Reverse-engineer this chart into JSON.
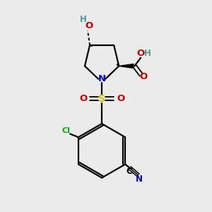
{
  "bg_color": "#ebebeb",
  "bond_color": "#000000",
  "N_color": "#0000cc",
  "O_color": "#cc0000",
  "S_color": "#cccc00",
  "Cl_color": "#00aa00",
  "C_color": "#000000",
  "N2_color": "#0000cc",
  "H_color": "#4a9a9a",
  "line_width": 1.6,
  "figsize": [
    3.0,
    3.0
  ],
  "dpi": 100,
  "xlim": [
    0,
    10
  ],
  "ylim": [
    0,
    10
  ]
}
